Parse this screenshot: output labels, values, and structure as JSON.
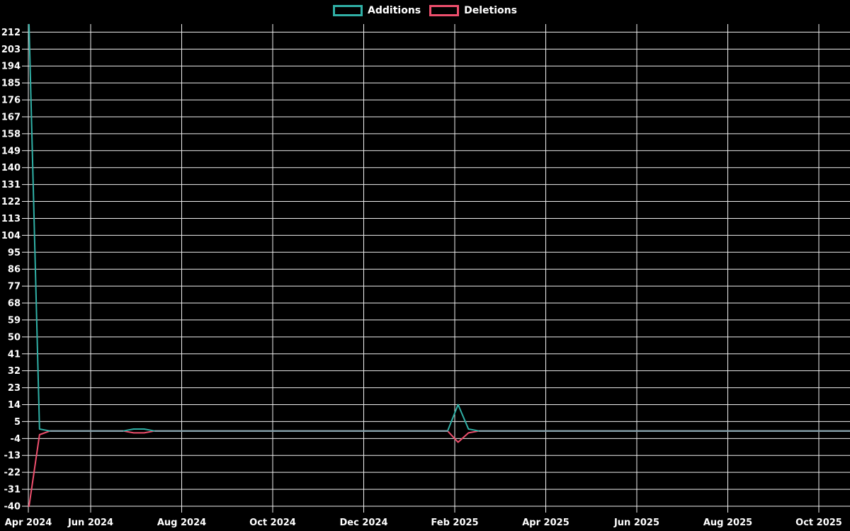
{
  "page": {
    "background_color": "#000000",
    "text_color": "#ffffff",
    "grid_color": "#f0f0f0"
  },
  "legend": {
    "position": "top-center",
    "items": [
      {
        "label": "Additions",
        "color": "#30b0a6"
      },
      {
        "label": "Deletions",
        "color": "#ee4f6d"
      }
    ]
  },
  "chart_data": {
    "type": "line",
    "title": "",
    "xlabel": "",
    "ylabel": "",
    "grid": true,
    "legend_position": "top-center",
    "background": "#000000",
    "overlap_line_color": "#8ca6b0",
    "x_axis": {
      "tick_labels": [
        "Apr 2024",
        "Jun 2024",
        "Aug 2024",
        "Oct 2024",
        "Dec 2024",
        "Feb 2025",
        "Apr 2025",
        "Jun 2025",
        "Aug 2025",
        "Oct 2025"
      ]
    },
    "y_axis": {
      "min": -40,
      "max": 212,
      "step": 9,
      "top_edge_value": 217,
      "tick_labels": [
        "-40",
        "-31",
        "-22",
        "-13",
        "-4",
        "5",
        "14",
        "23",
        "32",
        "41",
        "50",
        "59",
        "68",
        "77",
        "86",
        "95",
        "104",
        "113",
        "122",
        "131",
        "140",
        "149",
        "158",
        "167",
        "176",
        "185",
        "194",
        "203",
        "212"
      ]
    },
    "weeks_total": 79,
    "baseline_value": 0,
    "series": [
      {
        "name": "Additions",
        "color": "#30b0a6",
        "default_value": 0,
        "nonzero_points": [
          {
            "week": 0,
            "value": 216
          },
          {
            "week": 1,
            "value": 1
          },
          {
            "week": 10,
            "value": 1
          },
          {
            "week": 11,
            "value": 1
          },
          {
            "week": 41,
            "value": 14
          },
          {
            "week": 42,
            "value": 1
          }
        ]
      },
      {
        "name": "Deletions",
        "color": "#ee4f6d",
        "default_value": 0,
        "nonzero_points": [
          {
            "week": 0,
            "value": -40
          },
          {
            "week": 1,
            "value": -2
          },
          {
            "week": 10,
            "value": -1
          },
          {
            "week": 11,
            "value": -1
          },
          {
            "week": 41,
            "value": -6
          },
          {
            "week": 42,
            "value": -1
          }
        ]
      }
    ]
  }
}
